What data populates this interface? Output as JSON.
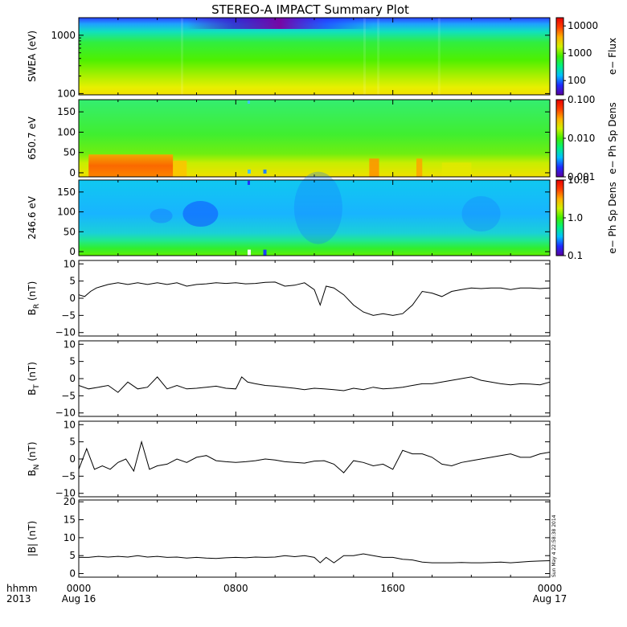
{
  "title": "STEREO-A IMPACT Summary Plot",
  "stamp": "Sun May  4 22:58:38 2014",
  "bottom_axis": {
    "row1_label": "hhmm",
    "row2_label": "2013",
    "ticks": [
      {
        "hour": 0,
        "time": "0000",
        "date": "Aug 16"
      },
      {
        "hour": 8,
        "time": "0800",
        "date": ""
      },
      {
        "hour": 16,
        "time": "1600",
        "date": ""
      },
      {
        "hour": 24,
        "time": "0000",
        "date": "Aug 17"
      }
    ]
  },
  "colors": {
    "colormap": [
      "#5a00a0",
      "#1f2aff",
      "#00bfff",
      "#00f080",
      "#40ee00",
      "#d0f000",
      "#ffb000",
      "#ff4000",
      "#e80000"
    ],
    "line": "#000000",
    "frame": "#000000"
  },
  "chart_data": [
    {
      "type": "heatmap",
      "name": "swea",
      "ylabel": "SWEA (eV)",
      "yscale": "log",
      "ylim": [
        95,
        2000
      ],
      "yticks": [
        {
          "v": 100,
          "label": "100"
        },
        {
          "v": 1000,
          "label": "1000"
        }
      ],
      "colorbar": {
        "label": "e− Flux",
        "scale": "log",
        "range": [
          30,
          20000
        ],
        "ticks": [
          {
            "v": 100,
            "label": "100"
          },
          {
            "v": 1000,
            "label": "1000"
          },
          {
            "v": 10000,
            "label": "10000"
          }
        ]
      },
      "description_values": {
        "low_energy_level": "yellow",
        "high_energy_level": "blue",
        "depletion_hours": [
          8.0,
          12.5
        ]
      }
    },
    {
      "type": "heatmap",
      "name": "pad650",
      "ylabel": "650.7 eV",
      "ylim": [
        -10,
        180
      ],
      "yticks": [
        {
          "v": 0,
          "label": "0"
        },
        {
          "v": 50,
          "label": "50"
        },
        {
          "v": 100,
          "label": "100"
        },
        {
          "v": 150,
          "label": "150"
        }
      ],
      "colorbar": {
        "label": "e− Ph Sp Dens",
        "scale": "log",
        "range": [
          0.001,
          0.1
        ],
        "ticks": [
          {
            "v": 0.001,
            "label": "0.001"
          },
          {
            "v": 0.01,
            "label": "0.010"
          },
          {
            "v": 0.1,
            "label": "0.100"
          }
        ]
      }
    },
    {
      "type": "heatmap",
      "name": "pad246",
      "ylabel": "246.6 eV",
      "ylim": [
        -10,
        180
      ],
      "yticks": [
        {
          "v": 0,
          "label": "0"
        },
        {
          "v": 50,
          "label": "50"
        },
        {
          "v": 100,
          "label": "100"
        },
        {
          "v": 150,
          "label": "150"
        }
      ],
      "colorbar": {
        "label": "e− Ph Sp Dens",
        "scale": "log",
        "range": [
          0.1,
          10
        ],
        "ticks": [
          {
            "v": 0.1,
            "label": "0.1"
          },
          {
            "v": 1,
            "label": "1.0"
          },
          {
            "v": 10,
            "label": "10.0"
          }
        ]
      }
    },
    {
      "type": "line",
      "name": "br",
      "ylabel": "B_R (nT)",
      "ylim": [
        -11,
        11
      ],
      "yticks": [
        {
          "v": -10,
          "label": "−10"
        },
        {
          "v": -5,
          "label": "−5"
        },
        {
          "v": 0,
          "label": "0"
        },
        {
          "v": 5,
          "label": "5"
        },
        {
          "v": 10,
          "label": "10"
        }
      ],
      "x": [
        0,
        0.3,
        0.6,
        0.9,
        1.2,
        1.5,
        2.0,
        2.5,
        3.0,
        3.5,
        4.0,
        4.5,
        5.0,
        5.5,
        6.0,
        6.5,
        7.0,
        7.5,
        8.0,
        8.5,
        9.0,
        9.5,
        10.0,
        10.5,
        11.0,
        11.5,
        12.0,
        12.3,
        12.6,
        13.0,
        13.5,
        14.0,
        14.5,
        15.0,
        15.5,
        16.0,
        16.5,
        17.0,
        17.5,
        18.0,
        18.5,
        19.0,
        19.5,
        20.0,
        20.5,
        21.0,
        21.5,
        22.0,
        22.5,
        23.0,
        23.5,
        24.0
      ],
      "y": [
        1,
        0.5,
        2,
        3,
        3.5,
        4,
        4.5,
        4,
        4.5,
        4,
        4.5,
        4,
        4.5,
        3.5,
        4,
        4.2,
        4.5,
        4.3,
        4.5,
        4.2,
        4.3,
        4.6,
        4.7,
        3.5,
        3.8,
        4.5,
        2.5,
        -2,
        3.5,
        3,
        1,
        -2,
        -4,
        -5,
        -4.5,
        -5,
        -4.5,
        -2,
        2,
        1.5,
        0.5,
        2,
        2.5,
        3,
        2.8,
        3,
        3,
        2.5,
        3,
        3,
        2.8,
        3
      ]
    },
    {
      "type": "line",
      "name": "bt",
      "ylabel": "B_T (nT)",
      "ylim": [
        -11,
        11
      ],
      "yticks": [
        {
          "v": -10,
          "label": "−10"
        },
        {
          "v": -5,
          "label": "−5"
        },
        {
          "v": 0,
          "label": "0"
        },
        {
          "v": 5,
          "label": "5"
        },
        {
          "v": 10,
          "label": "10"
        }
      ],
      "x": [
        0,
        0.5,
        1.0,
        1.5,
        2.0,
        2.5,
        3.0,
        3.5,
        4.0,
        4.5,
        5.0,
        5.5,
        6.0,
        6.5,
        7.0,
        7.5,
        8.0,
        8.3,
        8.6,
        9.0,
        9.5,
        10.0,
        10.5,
        11.0,
        11.5,
        12.0,
        12.5,
        13.0,
        13.5,
        14.0,
        14.5,
        15.0,
        15.5,
        16.0,
        16.5,
        17.0,
        17.5,
        18.0,
        18.5,
        19.0,
        19.5,
        20.0,
        20.5,
        21.0,
        21.5,
        22.0,
        22.5,
        23.0,
        23.5,
        24.0
      ],
      "y": [
        -2,
        -3,
        -2.5,
        -2,
        -4,
        -1,
        -3,
        -2.5,
        0.5,
        -3,
        -2,
        -3,
        -2.8,
        -2.5,
        -2.2,
        -2.8,
        -3,
        0.5,
        -1,
        -1.5,
        -2,
        -2.2,
        -2.5,
        -2.8,
        -3.2,
        -2.8,
        -3,
        -3.2,
        -3.5,
        -2.8,
        -3.2,
        -2.5,
        -3,
        -2.8,
        -2.5,
        -2,
        -1.5,
        -1.5,
        -1,
        -0.5,
        0,
        0.5,
        -0.5,
        -1,
        -1.5,
        -1.8,
        -1.5,
        -1.6,
        -1.8,
        -1
      ]
    },
    {
      "type": "line",
      "name": "bn",
      "ylabel": "B_N (nT)",
      "ylim": [
        -11,
        11
      ],
      "yticks": [
        {
          "v": -10,
          "label": "−10"
        },
        {
          "v": -5,
          "label": "−5"
        },
        {
          "v": 0,
          "label": "0"
        },
        {
          "v": 5,
          "label": "5"
        },
        {
          "v": 10,
          "label": "10"
        }
      ],
      "x": [
        0,
        0.4,
        0.8,
        1.2,
        1.6,
        2.0,
        2.4,
        2.8,
        3.2,
        3.6,
        4.0,
        4.5,
        5.0,
        5.5,
        6.0,
        6.5,
        7.0,
        7.5,
        8.0,
        8.5,
        9.0,
        9.5,
        10.0,
        10.5,
        11.0,
        11.5,
        12.0,
        12.5,
        13.0,
        13.5,
        14.0,
        14.5,
        15.0,
        15.5,
        16.0,
        16.5,
        17.0,
        17.5,
        18.0,
        18.5,
        19.0,
        19.5,
        20.0,
        20.5,
        21.0,
        21.5,
        22.0,
        22.5,
        23.0,
        23.5,
        24.0
      ],
      "y": [
        -3,
        3,
        -3,
        -2,
        -3,
        -1,
        0,
        -3.5,
        5,
        -3,
        -2,
        -1.5,
        0,
        -1,
        0.5,
        1,
        -0.5,
        -0.8,
        -1,
        -0.8,
        -0.5,
        0,
        -0.3,
        -0.8,
        -1,
        -1.2,
        -0.6,
        -0.5,
        -1.5,
        -4,
        -0.5,
        -1,
        -2,
        -1.5,
        -3,
        2.5,
        1.5,
        1.5,
        0.5,
        -1.5,
        -2,
        -1,
        -0.5,
        0,
        0.5,
        1,
        1.5,
        0.5,
        0.5,
        1.5,
        2
      ]
    },
    {
      "type": "line",
      "name": "bmag",
      "ylabel": "|B| (nT)",
      "ylim": [
        -1,
        20.5
      ],
      "yticks": [
        {
          "v": 0,
          "label": "0"
        },
        {
          "v": 5,
          "label": "5"
        },
        {
          "v": 10,
          "label": "10"
        },
        {
          "v": 15,
          "label": "15"
        },
        {
          "v": 20,
          "label": "20"
        }
      ],
      "x": [
        0,
        0.5,
        1.0,
        1.5,
        2.0,
        2.5,
        3.0,
        3.5,
        4.0,
        4.5,
        5.0,
        5.5,
        6.0,
        6.5,
        7.0,
        7.5,
        8.0,
        8.5,
        9.0,
        9.5,
        10.0,
        10.5,
        11.0,
        11.5,
        12.0,
        12.3,
        12.6,
        13.0,
        13.5,
        14.0,
        14.5,
        15.0,
        15.5,
        16.0,
        16.5,
        17.0,
        17.5,
        18.0,
        18.5,
        19.0,
        19.5,
        20.0,
        20.5,
        21.0,
        21.5,
        22.0,
        22.5,
        23.0,
        23.5,
        24.0
      ],
      "y": [
        4.5,
        4.5,
        4.8,
        4.6,
        4.8,
        4.6,
        5,
        4.6,
        4.8,
        4.5,
        4.6,
        4.3,
        4.5,
        4.3,
        4.2,
        4.4,
        4.5,
        4.4,
        4.6,
        4.5,
        4.6,
        5,
        4.7,
        5,
        4.5,
        3,
        4.5,
        3,
        5,
        5,
        5.5,
        5,
        4.5,
        4.5,
        4,
        3.8,
        3.2,
        3,
        3,
        3,
        3.1,
        3,
        3,
        3.1,
        3.2,
        3,
        3.2,
        3.4,
        3.5,
        3.6
      ]
    }
  ]
}
